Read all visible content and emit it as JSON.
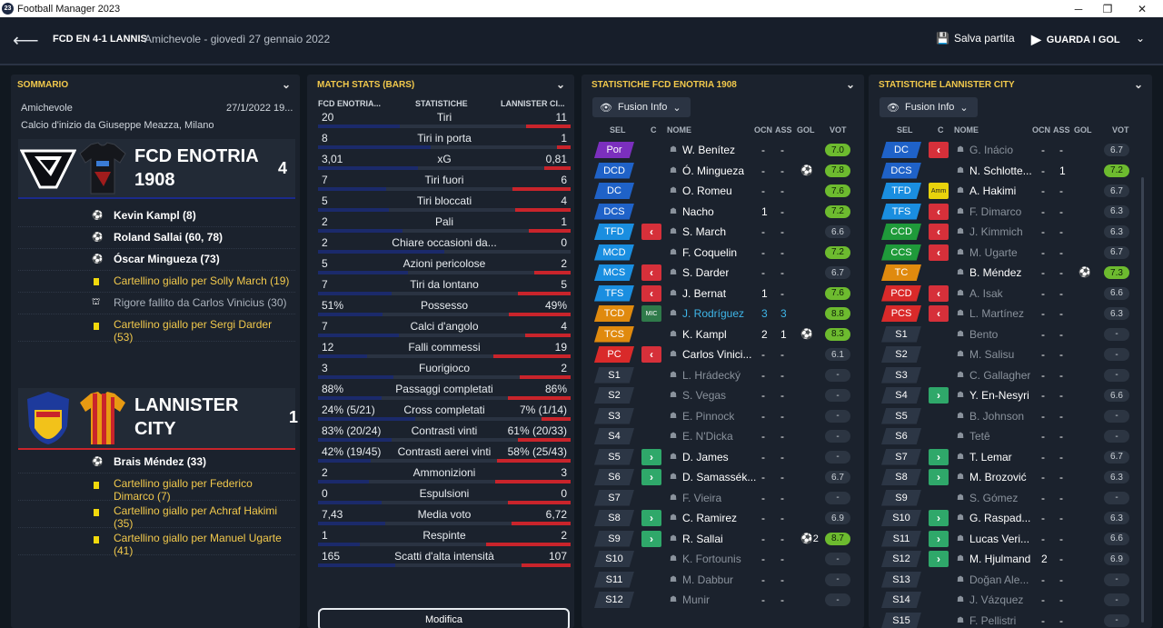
{
  "window": {
    "title": "Football Manager 2023",
    "logo": "23"
  },
  "header": {
    "match": "FCD EN 4-1 LANNIS",
    "info": "Amichevole - giovedì 27 gennaio 2022",
    "save_label": "Salva partita",
    "watch_label": "GUARDA I GOL"
  },
  "summary": {
    "title": "SOMMARIO",
    "competition": "Amichevole",
    "date": "27/1/2022 19...",
    "kickoff": "Calcio d'inizio da Giuseppe Meazza, Milano",
    "home": {
      "name1": "FCD ENOTRIA",
      "name2": "1908",
      "score": "4",
      "events": [
        {
          "type": "goal",
          "text": "Kevin Kampl (8)"
        },
        {
          "type": "goal",
          "text": "Roland Sallai (60, 78)"
        },
        {
          "type": "goal",
          "text": "Óscar Mingueza (73)"
        },
        {
          "type": "yellow",
          "text": "Cartellino giallo per Solly March (19)"
        },
        {
          "type": "penalty",
          "text": "Rigore fallito da Carlos Vinicius (30)"
        },
        {
          "type": "yellow",
          "text": "Cartellino giallo per Sergi Darder (53)"
        }
      ]
    },
    "away": {
      "name1": "LANNISTER",
      "name2": "CITY",
      "score": "1",
      "events": [
        {
          "type": "goal",
          "text": "Brais Méndez (33)"
        },
        {
          "type": "yellow",
          "text": "Cartellino giallo per Federico Dimarco (7)"
        },
        {
          "type": "yellow",
          "text": "Cartellino giallo per Achraf Hakimi (35)"
        },
        {
          "type": "yellow",
          "text": "Cartellino giallo per Manuel Ugarte (41)"
        }
      ]
    }
  },
  "stats": {
    "title": "MATCH STATS (BARS)",
    "col_home": "FCD ENOTRIA...",
    "col_mid": "STATISTICHE",
    "col_away": "LANNISTER CI...",
    "edit_label": "Modifica",
    "rows": [
      {
        "label": "Tiri",
        "home": "20",
        "away": "11",
        "hf": 0.65,
        "af": 0.35
      },
      {
        "label": "Tiri in porta",
        "home": "8",
        "away": "1",
        "hf": 0.89,
        "af": 0.11
      },
      {
        "label": "xG",
        "home": "3,01",
        "away": "0,81",
        "hf": 0.79,
        "af": 0.21
      },
      {
        "label": "Tiri fuori",
        "home": "7",
        "away": "6",
        "hf": 0.54,
        "af": 0.46
      },
      {
        "label": "Tiri bloccati",
        "home": "5",
        "away": "4",
        "hf": 0.56,
        "af": 0.44
      },
      {
        "label": "Pali",
        "home": "2",
        "away": "1",
        "hf": 0.67,
        "af": 0.33
      },
      {
        "label": "Chiare occasioni da...",
        "home": "2",
        "away": "0",
        "hf": 1,
        "af": 0
      },
      {
        "label": "Azioni pericolose",
        "home": "5",
        "away": "2",
        "hf": 0.71,
        "af": 0.29
      },
      {
        "label": "Tiri da lontano",
        "home": "7",
        "away": "5",
        "hf": 0.58,
        "af": 0.42
      },
      {
        "label": "Possesso",
        "home": "51%",
        "away": "49%",
        "hf": 0.51,
        "af": 0.49
      },
      {
        "label": "Calci d'angolo",
        "home": "7",
        "away": "4",
        "hf": 0.64,
        "af": 0.36
      },
      {
        "label": "Falli commessi",
        "home": "12",
        "away": "19",
        "hf": 0.39,
        "af": 0.61
      },
      {
        "label": "Fuorigioco",
        "home": "3",
        "away": "2",
        "hf": 0.6,
        "af": 0.4
      },
      {
        "label": "Passaggi completati",
        "home": "88%",
        "away": "86%",
        "hf": 0.5,
        "af": 0.5
      },
      {
        "label": "Cross completati",
        "home": "24% (5/21)",
        "away": "7% (1/14)",
        "hf": 0.77,
        "af": 0.23
      },
      {
        "label": "Contrasti vinti",
        "home": "83% (20/24)",
        "away": "61% (20/33)",
        "hf": 0.58,
        "af": 0.42
      },
      {
        "label": "Contrasti aerei vinti",
        "home": "42% (19/45)",
        "away": "58% (25/43)",
        "hf": 0.42,
        "af": 0.58
      },
      {
        "label": "Ammonizioni",
        "home": "2",
        "away": "3",
        "hf": 0.4,
        "af": 0.6
      },
      {
        "label": "Espulsioni",
        "home": "0",
        "away": "0",
        "hf": 0.5,
        "af": 0.5
      },
      {
        "label": "Media voto",
        "home": "7,43",
        "away": "6,72",
        "hf": 0.53,
        "af": 0.47
      },
      {
        "label": "Respinte",
        "home": "1",
        "away": "2",
        "hf": 0.33,
        "af": 0.67
      },
      {
        "label": "Scatti d'alta intensità",
        "home": "165",
        "away": "107",
        "hf": 0.61,
        "af": 0.39
      }
    ]
  },
  "home_players": {
    "title": "STATISTICHE FCD ENOTRIA 1908",
    "filter": "Fusion Info",
    "cols": {
      "sel": "SEL",
      "c": "C",
      "nome": "NOME",
      "ocn": "OCN",
      "ass": "ASS",
      "gol": "GOL",
      "vot": "VOT"
    },
    "rows": [
      {
        "pos": "Por",
        "pc": "#7b2fbe",
        "sub": "",
        "name": "W. Benítez",
        "ocn": "-",
        "ass": "-",
        "gol": "",
        "vot": "7.0",
        "vc": "#6dbb2f"
      },
      {
        "pos": "DCD",
        "pc": "#1f62c8",
        "sub": "",
        "name": "Ó. Mingueza",
        "ocn": "-",
        "ass": "-",
        "gol": "⚽",
        "vot": "7.8",
        "vc": "#6dbb2f"
      },
      {
        "pos": "DC",
        "pc": "#1f62c8",
        "sub": "",
        "name": "O. Romeu",
        "ocn": "-",
        "ass": "-",
        "gol": "",
        "vot": "7.6",
        "vc": "#6dbb2f"
      },
      {
        "pos": "DCS",
        "pc": "#1f62c8",
        "sub": "",
        "name": "Nacho",
        "ocn": "1",
        "ass": "-",
        "gol": "",
        "vot": "7.2",
        "vc": "#6dbb2f"
      },
      {
        "pos": "TFD",
        "pc": "#1a8ee0",
        "sub": "out",
        "name": "S. March",
        "ocn": "-",
        "ass": "-",
        "gol": "",
        "vot": "6.6",
        "vc": ""
      },
      {
        "pos": "MCD",
        "pc": "#1a8ee0",
        "sub": "",
        "name": "F. Coquelin",
        "ocn": "-",
        "ass": "-",
        "gol": "",
        "vot": "7.2",
        "vc": "#6dbb2f"
      },
      {
        "pos": "MCS",
        "pc": "#1a8ee0",
        "sub": "out",
        "name": "S. Darder",
        "ocn": "-",
        "ass": "-",
        "gol": "",
        "vot": "6.7",
        "vc": ""
      },
      {
        "pos": "TFS",
        "pc": "#1a8ee0",
        "sub": "out",
        "name": "J. Bernat",
        "ocn": "1",
        "ass": "-",
        "gol": "",
        "vot": "7.6",
        "vc": "#6dbb2f"
      },
      {
        "pos": "TCD",
        "pc": "#e08a0e",
        "sub": "mic",
        "name": "J. Rodríguez",
        "ocn": "3",
        "ass": "3",
        "gol": "",
        "vot": "8.8",
        "vc": "#6dbb2f",
        "hl": "#3fb6e8"
      },
      {
        "pos": "TCS",
        "pc": "#e08a0e",
        "sub": "",
        "name": "K. Kampl",
        "ocn": "2",
        "ass": "1",
        "gol": "⚽",
        "vot": "8.3",
        "vc": "#6dbb2f"
      },
      {
        "pos": "PC",
        "pc": "#d92a2a",
        "sub": "out",
        "name": "Carlos Vinici...",
        "ocn": "-",
        "ass": "-",
        "gol": "",
        "vot": "6.1",
        "vc": ""
      },
      {
        "pos": "S1",
        "pc": "#2c3645",
        "sub": "",
        "name": "L. Hrádecký",
        "ocn": "-",
        "ass": "-",
        "gol": "",
        "vot": "-",
        "vc": "",
        "dim": true
      },
      {
        "pos": "S2",
        "pc": "#2c3645",
        "sub": "",
        "name": "S. Vegas",
        "ocn": "-",
        "ass": "-",
        "gol": "",
        "vot": "-",
        "vc": "",
        "dim": true
      },
      {
        "pos": "S3",
        "pc": "#2c3645",
        "sub": "",
        "name": "E. Pinnock",
        "ocn": "-",
        "ass": "-",
        "gol": "",
        "vot": "-",
        "vc": "",
        "dim": true
      },
      {
        "pos": "S4",
        "pc": "#2c3645",
        "sub": "",
        "name": "E. N'Dicka",
        "ocn": "-",
        "ass": "-",
        "gol": "",
        "vot": "-",
        "vc": "",
        "dim": true
      },
      {
        "pos": "S5",
        "pc": "#2c3645",
        "sub": "in",
        "name": "D. James",
        "ocn": "-",
        "ass": "-",
        "gol": "",
        "vot": "-",
        "vc": ""
      },
      {
        "pos": "S6",
        "pc": "#2c3645",
        "sub": "in",
        "name": "D. Samassék...",
        "ocn": "-",
        "ass": "-",
        "gol": "",
        "vot": "6.7",
        "vc": ""
      },
      {
        "pos": "S7",
        "pc": "#2c3645",
        "sub": "",
        "name": "F. Vieira",
        "ocn": "-",
        "ass": "-",
        "gol": "",
        "vot": "-",
        "vc": "",
        "dim": true
      },
      {
        "pos": "S8",
        "pc": "#2c3645",
        "sub": "in",
        "name": "C. Ramirez",
        "ocn": "-",
        "ass": "-",
        "gol": "",
        "vot": "6.9",
        "vc": ""
      },
      {
        "pos": "S9",
        "pc": "#2c3645",
        "sub": "in",
        "name": "R. Sallai",
        "ocn": "-",
        "ass": "-",
        "gol": "⚽2",
        "vot": "8.7",
        "vc": "#6dbb2f"
      },
      {
        "pos": "S10",
        "pc": "#2c3645",
        "sub": "",
        "name": "K. Fortounis",
        "ocn": "-",
        "ass": "-",
        "gol": "",
        "vot": "-",
        "vc": "",
        "dim": true
      },
      {
        "pos": "S11",
        "pc": "#2c3645",
        "sub": "",
        "name": "M. Dabbur",
        "ocn": "-",
        "ass": "-",
        "gol": "",
        "vot": "-",
        "vc": "",
        "dim": true
      },
      {
        "pos": "S12",
        "pc": "#2c3645",
        "sub": "",
        "name": "Munir",
        "ocn": "-",
        "ass": "-",
        "gol": "",
        "vot": "-",
        "vc": "",
        "dim": true
      }
    ]
  },
  "away_players": {
    "title": "STATISTICHE LANNISTER CITY",
    "filter": "Fusion Info",
    "cols": {
      "sel": "SEL",
      "c": "C",
      "nome": "NOME",
      "ocn": "OCN",
      "ass": "ASS",
      "gol": "GOL",
      "vot": "VOT"
    },
    "rows": [
      {
        "pos": "DC",
        "pc": "#1f62c8",
        "sub": "out",
        "name": "G. Inácio",
        "ocn": "-",
        "ass": "-",
        "gol": "",
        "vot": "6.7",
        "vc": "",
        "dim": true
      },
      {
        "pos": "DCS",
        "pc": "#1f62c8",
        "sub": "",
        "name": "N. Schlotte...",
        "ocn": "-",
        "ass": "1",
        "gol": "",
        "vot": "7.2",
        "vc": "#6dbb2f"
      },
      {
        "pos": "TFD",
        "pc": "#1a8ee0",
        "sub": "amm",
        "name": "A. Hakimi",
        "ocn": "-",
        "ass": "-",
        "gol": "",
        "vot": "6.7",
        "vc": ""
      },
      {
        "pos": "TFS",
        "pc": "#1a8ee0",
        "sub": "out",
        "name": "F. Dimarco",
        "ocn": "-",
        "ass": "-",
        "gol": "",
        "vot": "6.3",
        "vc": "",
        "dim": true
      },
      {
        "pos": "CCD",
        "pc": "#1f9a3a",
        "sub": "out",
        "name": "J. Kimmich",
        "ocn": "-",
        "ass": "-",
        "gol": "",
        "vot": "6.3",
        "vc": "",
        "dim": true
      },
      {
        "pos": "CCS",
        "pc": "#1f9a3a",
        "sub": "out",
        "name": "M. Ugarte",
        "ocn": "-",
        "ass": "-",
        "gol": "",
        "vot": "6.7",
        "vc": "",
        "dim": true
      },
      {
        "pos": "TC",
        "pc": "#e08a0e",
        "sub": "",
        "name": "B. Méndez",
        "ocn": "-",
        "ass": "-",
        "gol": "⚽",
        "vot": "7.3",
        "vc": "#6dbb2f"
      },
      {
        "pos": "PCD",
        "pc": "#d92a2a",
        "sub": "out",
        "name": "A. Isak",
        "ocn": "-",
        "ass": "-",
        "gol": "",
        "vot": "6.6",
        "vc": "",
        "dim": true
      },
      {
        "pos": "PCS",
        "pc": "#d92a2a",
        "sub": "out",
        "name": "L. Martínez",
        "ocn": "-",
        "ass": "-",
        "gol": "",
        "vot": "6.3",
        "vc": "",
        "dim": true
      },
      {
        "pos": "S1",
        "pc": "#2c3645",
        "sub": "",
        "name": "Bento",
        "ocn": "-",
        "ass": "-",
        "gol": "",
        "vot": "-",
        "vc": "",
        "dim": true
      },
      {
        "pos": "S2",
        "pc": "#2c3645",
        "sub": "",
        "name": "M. Salisu",
        "ocn": "-",
        "ass": "-",
        "gol": "",
        "vot": "-",
        "vc": "",
        "dim": true
      },
      {
        "pos": "S3",
        "pc": "#2c3645",
        "sub": "",
        "name": "C. Gallagher",
        "ocn": "-",
        "ass": "-",
        "gol": "",
        "vot": "-",
        "vc": "",
        "dim": true
      },
      {
        "pos": "S4",
        "pc": "#2c3645",
        "sub": "in",
        "name": "Y. En-Nesyri",
        "ocn": "-",
        "ass": "-",
        "gol": "",
        "vot": "6.6",
        "vc": ""
      },
      {
        "pos": "S5",
        "pc": "#2c3645",
        "sub": "",
        "name": "B. Johnson",
        "ocn": "-",
        "ass": "-",
        "gol": "",
        "vot": "-",
        "vc": "",
        "dim": true
      },
      {
        "pos": "S6",
        "pc": "#2c3645",
        "sub": "",
        "name": "Tetê",
        "ocn": "-",
        "ass": "-",
        "gol": "",
        "vot": "-",
        "vc": "",
        "dim": true
      },
      {
        "pos": "S7",
        "pc": "#2c3645",
        "sub": "in",
        "name": "T. Lemar",
        "ocn": "-",
        "ass": "-",
        "gol": "",
        "vot": "6.7",
        "vc": ""
      },
      {
        "pos": "S8",
        "pc": "#2c3645",
        "sub": "in",
        "name": "M. Brozović",
        "ocn": "-",
        "ass": "-",
        "gol": "",
        "vot": "6.3",
        "vc": ""
      },
      {
        "pos": "S9",
        "pc": "#2c3645",
        "sub": "",
        "name": "S. Gómez",
        "ocn": "-",
        "ass": "-",
        "gol": "",
        "vot": "-",
        "vc": "",
        "dim": true
      },
      {
        "pos": "S10",
        "pc": "#2c3645",
        "sub": "in",
        "name": "G. Raspad...",
        "ocn": "-",
        "ass": "-",
        "gol": "",
        "vot": "6.3",
        "vc": ""
      },
      {
        "pos": "S11",
        "pc": "#2c3645",
        "sub": "in",
        "name": "Lucas Veri...",
        "ocn": "-",
        "ass": "-",
        "gol": "",
        "vot": "6.6",
        "vc": ""
      },
      {
        "pos": "S12",
        "pc": "#2c3645",
        "sub": "in",
        "name": "M. Hjulmand",
        "ocn": "2",
        "ass": "-",
        "gol": "",
        "vot": "6.9",
        "vc": ""
      },
      {
        "pos": "S13",
        "pc": "#2c3645",
        "sub": "",
        "name": "Doğan Ale...",
        "ocn": "-",
        "ass": "-",
        "gol": "",
        "vot": "-",
        "vc": "",
        "dim": true
      },
      {
        "pos": "S14",
        "pc": "#2c3645",
        "sub": "",
        "name": "J. Vázquez",
        "ocn": "-",
        "ass": "-",
        "gol": "",
        "vot": "-",
        "vc": "",
        "dim": true
      },
      {
        "pos": "S15",
        "pc": "#2c3645",
        "sub": "",
        "name": "F. Pellistri",
        "ocn": "-",
        "ass": "-",
        "gol": "",
        "vot": "-",
        "vc": "",
        "dim": true
      }
    ]
  }
}
